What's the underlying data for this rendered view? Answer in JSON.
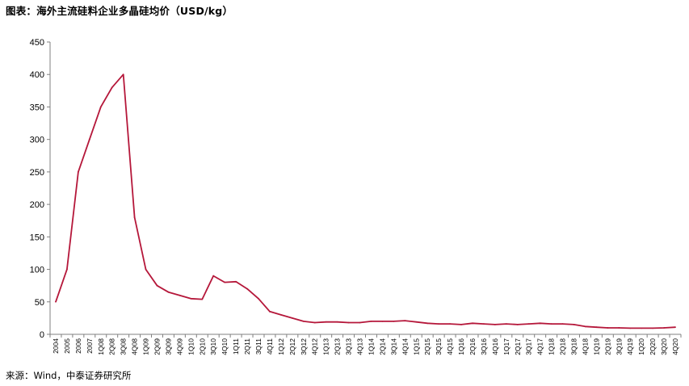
{
  "header": {
    "title": "图表：海外主流硅料企业多晶硅均价（USD/kg）"
  },
  "footer": {
    "source": "来源：Wind，中泰证券研究所"
  },
  "colors": {
    "line": "#b5173a",
    "axis": "#808080"
  },
  "chart_data": {
    "type": "line",
    "title": "海外主流硅料企业多晶硅均价（USD/kg）",
    "xlabel": "",
    "ylabel": "",
    "ylim": [
      0,
      450
    ],
    "yticks": [
      0,
      50,
      100,
      150,
      200,
      250,
      300,
      350,
      400,
      450
    ],
    "grid": false,
    "legend": "none",
    "categories": [
      "2004",
      "2005",
      "2006",
      "2007",
      "1Q08",
      "2Q08",
      "3Q08",
      "4Q08",
      "1Q09",
      "2Q09",
      "3Q09",
      "4Q09",
      "1Q10",
      "2Q10",
      "3Q10",
      "4Q10",
      "1Q11",
      "2Q11",
      "3Q11",
      "4Q11",
      "1Q12",
      "2Q12",
      "3Q12",
      "4Q12",
      "1Q13",
      "2Q13",
      "3Q13",
      "4Q13",
      "1Q14",
      "2Q14",
      "3Q14",
      "4Q14",
      "1Q15",
      "2Q15",
      "3Q15",
      "4Q15",
      "1Q16",
      "2Q16",
      "3Q16",
      "4Q16",
      "1Q17",
      "2Q17",
      "3Q17",
      "4Q17",
      "1Q18",
      "2Q18",
      "3Q18",
      "4Q18",
      "1Q19",
      "2Q19",
      "3Q19",
      "4Q19",
      "1Q20",
      "2Q20",
      "3Q20",
      "4Q20"
    ],
    "series": [
      {
        "name": "",
        "values": [
          50,
          100,
          250,
          300,
          350,
          380,
          400,
          180,
          100,
          75,
          65,
          60,
          55,
          54,
          90,
          80,
          81,
          70,
          55,
          35,
          30,
          25,
          20,
          18,
          19,
          19,
          18,
          18,
          20,
          20,
          20,
          21,
          19,
          17,
          16,
          16,
          15,
          17,
          16,
          15,
          16,
          15,
          16,
          17,
          16,
          16,
          15,
          12,
          11,
          10,
          10,
          9.5,
          9.5,
          9.5,
          10,
          11
        ]
      }
    ]
  }
}
